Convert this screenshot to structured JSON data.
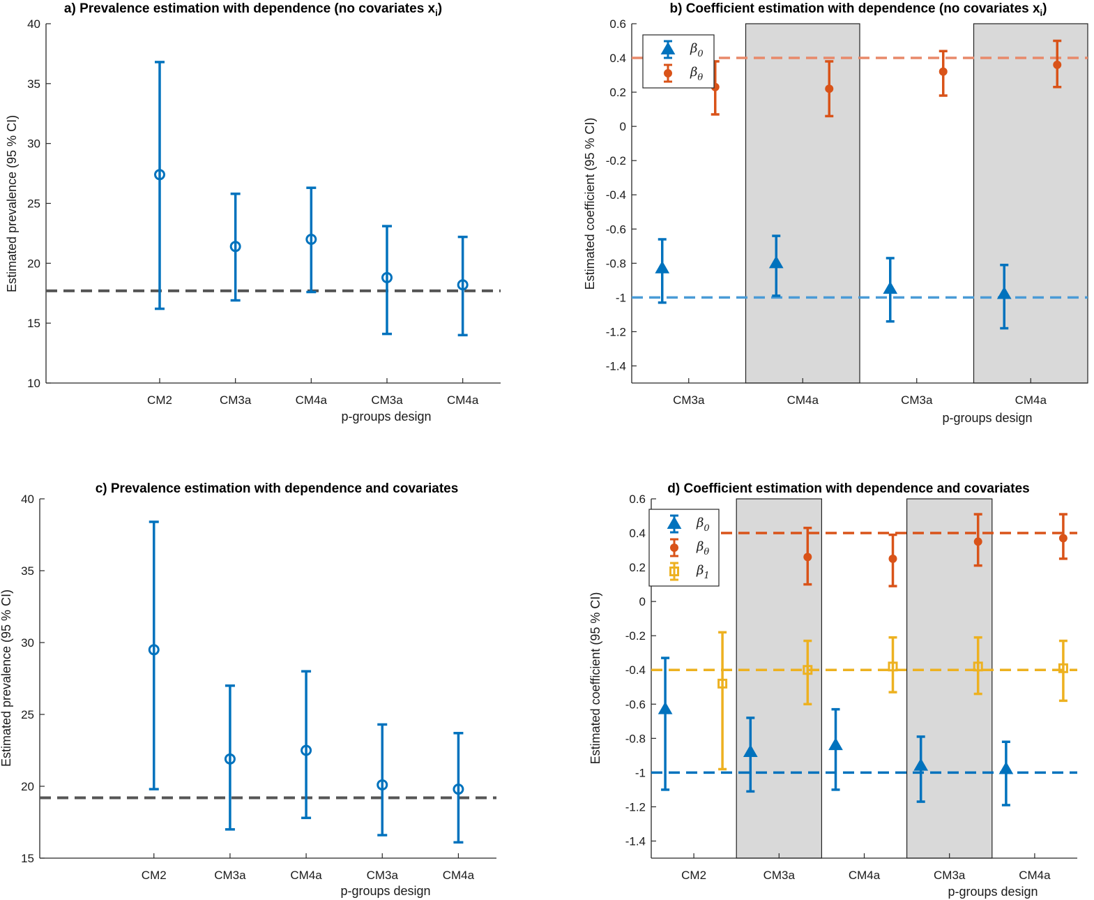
{
  "colors": {
    "blue": "#0072BD",
    "orange": "#D95319",
    "yellow": "#EDB120",
    "gray_line": "#555555",
    "shade": "#d9d9d9"
  },
  "chart_data": [
    {
      "type": "scatter",
      "title": "a) Prevalence estimation with dependence (no covariates x",
      "title_sub": "i",
      "title_end": ")",
      "ylabel": "Estimated prevalence (95 % CI)",
      "xlabel": "p-groups design",
      "categories": [
        "CM2",
        "CM3a",
        "CM4a",
        "CM3a",
        "CM4a"
      ],
      "ylim": [
        10,
        40
      ],
      "yticks": [
        10,
        15,
        20,
        25,
        30,
        35,
        40
      ],
      "reference_line": 17.7,
      "series": [
        {
          "marker": "circle",
          "color": "#0072BD",
          "values": [
            27.4,
            21.4,
            22.0,
            18.8,
            18.2
          ],
          "lower": [
            16.2,
            16.9,
            17.6,
            14.1,
            14.0
          ],
          "upper": [
            36.8,
            25.8,
            26.3,
            23.1,
            22.2
          ]
        }
      ]
    },
    {
      "type": "scatter",
      "title": "b) Coefficient estimation with dependence (no covariates x",
      "title_sub": "i",
      "title_end": ")",
      "ylabel": "Estimated coefficient (95 % CI)",
      "xlabel": "p-groups design",
      "categories": [
        "CM3a",
        "CM4a",
        "CM3a",
        "CM4a"
      ],
      "shaded_groups": [
        1,
        3
      ],
      "ylim": [
        -1.5,
        0.6
      ],
      "yticks": [
        -1.4,
        -1.2,
        -1,
        -0.8,
        -0.6,
        -0.4,
        -0.2,
        0,
        0.2,
        0.4,
        0.6
      ],
      "legend_position": "top-left",
      "reference_lines": [
        {
          "value": 0.4,
          "color": "#E8896A"
        },
        {
          "value": -1.0,
          "color": "#4A9BD6"
        }
      ],
      "series": [
        {
          "name": "β",
          "name_sub": "0",
          "marker": "triangle",
          "color": "#0072BD",
          "values": [
            -0.83,
            -0.8,
            -0.95,
            -0.98
          ],
          "lower": [
            -1.03,
            -0.99,
            -1.14,
            -1.18
          ],
          "upper": [
            -0.66,
            -0.64,
            -0.77,
            -0.81
          ]
        },
        {
          "name": "β",
          "name_sub": "θ",
          "marker": "dot",
          "color": "#D95319",
          "values": [
            0.23,
            0.22,
            0.32,
            0.36
          ],
          "lower": [
            0.07,
            0.06,
            0.18,
            0.23
          ],
          "upper": [
            0.38,
            0.38,
            0.44,
            0.5
          ]
        }
      ]
    },
    {
      "type": "scatter",
      "title": "c) Prevalence estimation with dependence and covariates",
      "ylabel": "Estimated prevalence (95 % CI)",
      "xlabel": "p-groups design",
      "categories": [
        "CM2",
        "CM3a",
        "CM4a",
        "CM3a",
        "CM4a"
      ],
      "ylim": [
        15,
        40
      ],
      "yticks": [
        15,
        20,
        25,
        30,
        35,
        40
      ],
      "reference_line": 19.2,
      "series": [
        {
          "marker": "circle",
          "color": "#0072BD",
          "values": [
            29.5,
            21.9,
            22.5,
            20.1,
            19.8
          ],
          "lower": [
            19.8,
            17.0,
            17.8,
            16.6,
            16.1
          ],
          "upper": [
            38.4,
            27.0,
            28.0,
            24.3,
            23.7
          ]
        }
      ]
    },
    {
      "type": "scatter",
      "title": "d) Coefficient estimation with dependence and covariates",
      "ylabel": "Estimated coefficient (95 % CI)",
      "xlabel": "p-groups design",
      "categories": [
        "CM2",
        "CM3a",
        "CM4a",
        "CM3a",
        "CM4a"
      ],
      "shaded_groups": [
        1,
        3
      ],
      "ylim": [
        -1.5,
        0.6
      ],
      "yticks": [
        -1.4,
        -1.2,
        -1,
        -0.8,
        -0.6,
        -0.4,
        -0.2,
        0,
        0.2,
        0.4,
        0.6
      ],
      "legend_position": "top-left",
      "reference_lines": [
        {
          "value": 0.4,
          "color": "#D95319"
        },
        {
          "value": -0.4,
          "color": "#EDB120"
        },
        {
          "value": -1.0,
          "color": "#0072BD"
        }
      ],
      "series": [
        {
          "name": "β",
          "name_sub": "0",
          "marker": "triangle",
          "color": "#0072BD",
          "values": [
            -0.63,
            -0.88,
            -0.84,
            -0.96,
            -0.98
          ],
          "lower": [
            -1.1,
            -1.11,
            -1.1,
            -1.17,
            -1.19
          ],
          "upper": [
            -0.33,
            -0.68,
            -0.63,
            -0.79,
            -0.82
          ]
        },
        {
          "name": "β",
          "name_sub": "θ",
          "marker": "dot",
          "color": "#D95319",
          "values": [
            null,
            0.26,
            0.25,
            0.35,
            0.37
          ],
          "lower": [
            null,
            0.1,
            0.09,
            0.21,
            0.25
          ],
          "upper": [
            null,
            0.43,
            0.39,
            0.51,
            0.51
          ]
        },
        {
          "name": "β",
          "name_sub": "1",
          "marker": "square",
          "color": "#EDB120",
          "values": [
            -0.48,
            -0.4,
            -0.38,
            -0.38,
            -0.39
          ],
          "lower": [
            -0.98,
            -0.6,
            -0.53,
            -0.54,
            -0.58
          ],
          "upper": [
            -0.18,
            -0.23,
            -0.21,
            -0.21,
            -0.23
          ]
        }
      ]
    }
  ]
}
